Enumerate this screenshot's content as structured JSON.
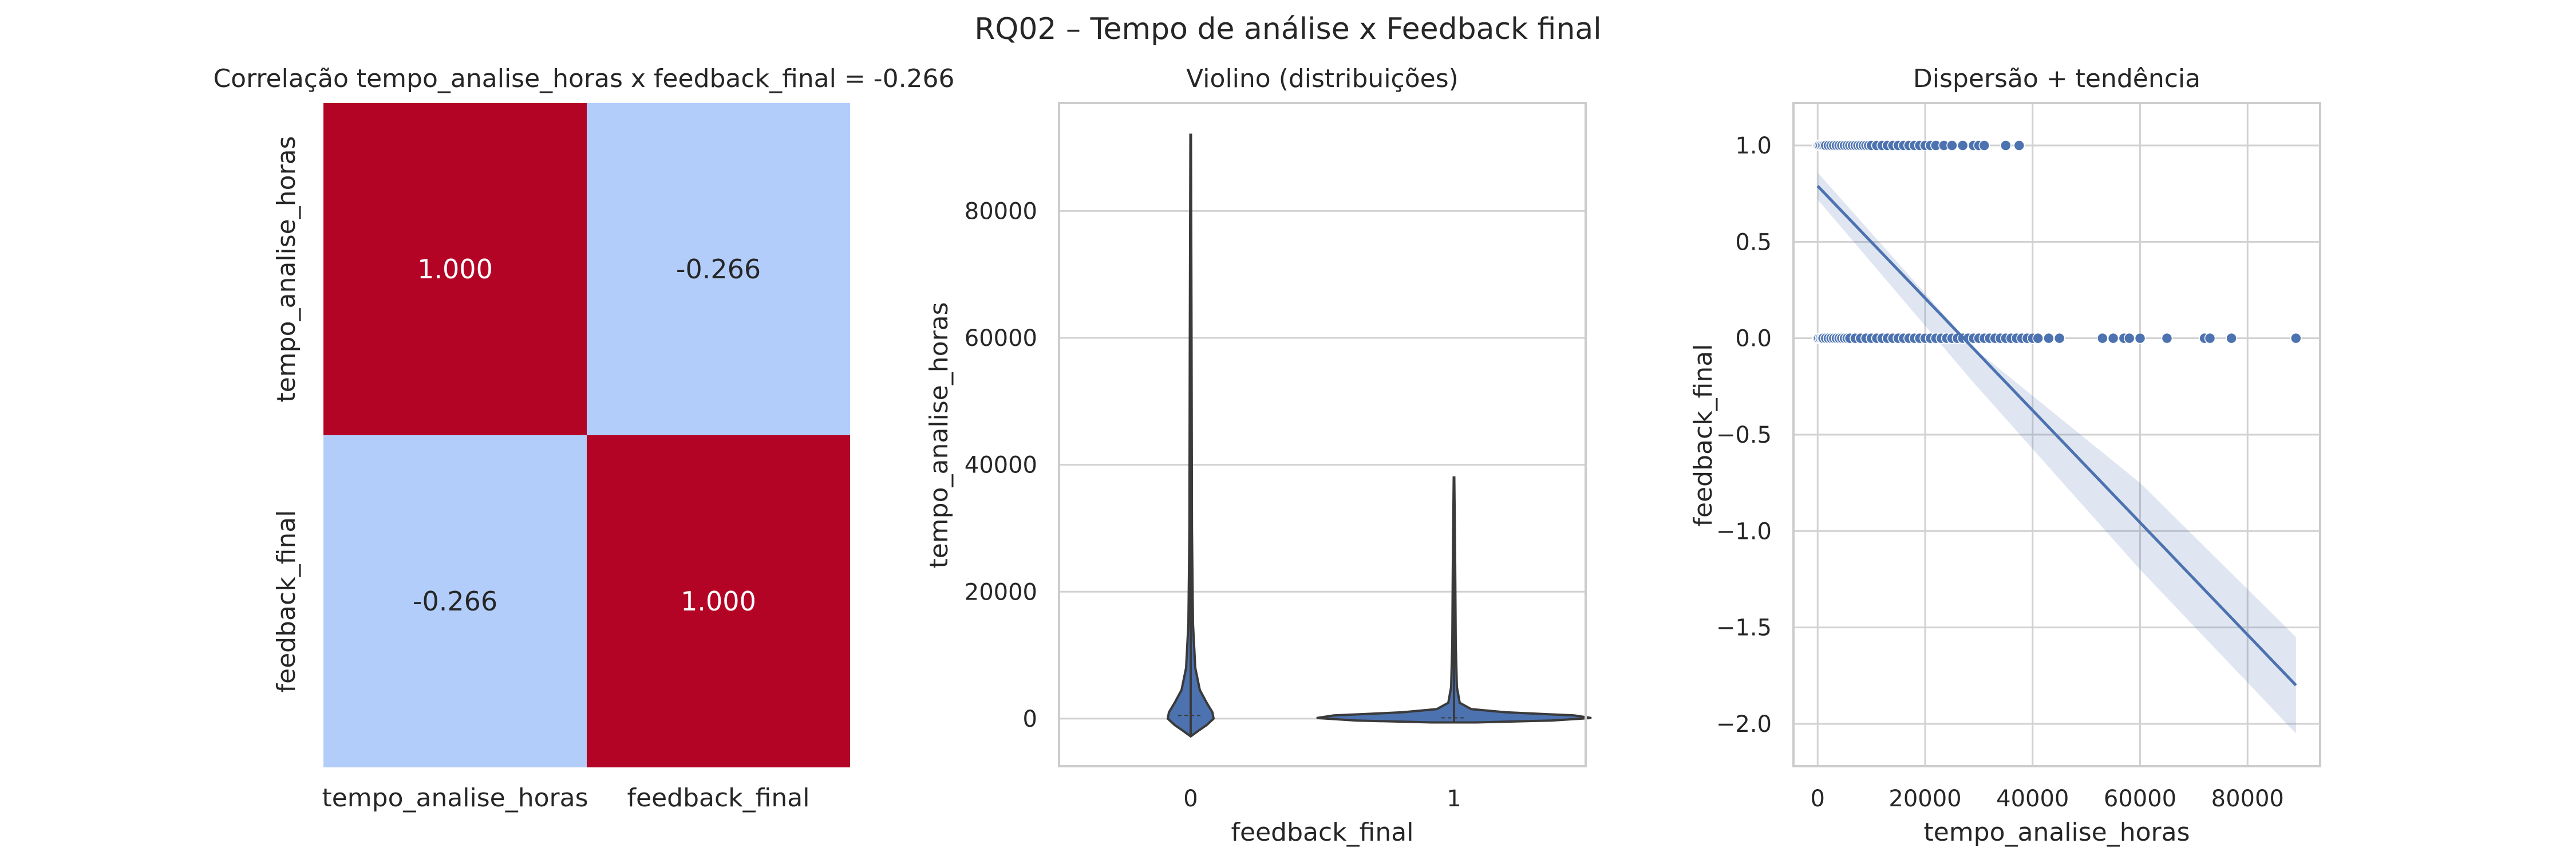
{
  "figure_title": "RQ02 – Tempo de análise x Feedback final",
  "chart_data": [
    {
      "type": "heatmap",
      "title": "Correlação tempo_analise_horas x feedback_final = -0.266",
      "row_labels": [
        "tempo_analise_horas",
        "feedback_final"
      ],
      "col_labels": [
        "tempo_analise_horas",
        "feedback_final"
      ],
      "matrix": [
        [
          1.0,
          -0.266
        ],
        [
          -0.266,
          1.0
        ]
      ],
      "cell_labels": [
        [
          "1.000",
          "-0.266"
        ],
        [
          "-0.266",
          "1.000"
        ]
      ],
      "colors": {
        "high": "#b40426",
        "low": "#b3cdfa",
        "text_on_high": "#ffffff",
        "text_on_low": "#262626"
      }
    },
    {
      "type": "violin",
      "title": "Violino (distribuições)",
      "xlabel": "feedback_final",
      "ylabel": "tempo_analise_horas",
      "categories": [
        "0",
        "1"
      ],
      "ylim": [
        -7500,
        97000
      ],
      "yticks": [
        0,
        20000,
        40000,
        60000,
        80000
      ],
      "ytick_labels": [
        "0",
        "20000",
        "40000",
        "60000",
        "80000"
      ],
      "violins": [
        {
          "category": "0",
          "min": -2800,
          "max": 92000,
          "median": 500,
          "q1": -300,
          "q3": 2500
        },
        {
          "category": "1",
          "min": -600,
          "max": 38000,
          "median": 120,
          "q1": -100,
          "q3": 600
        }
      ],
      "color": "#4c72b0"
    },
    {
      "type": "scatter",
      "title": "Dispersão + tendência",
      "xlabel": "tempo_analise_horas",
      "ylabel": "feedback_final",
      "xlim": [
        -4500,
        93500
      ],
      "ylim": [
        -2.22,
        1.22
      ],
      "xticks": [
        0,
        20000,
        40000,
        60000,
        80000
      ],
      "xtick_labels": [
        "0",
        "20000",
        "40000",
        "60000",
        "80000"
      ],
      "yticks": [
        1.0,
        0.5,
        0.0,
        -0.5,
        -1.0,
        -1.5,
        -2.0
      ],
      "ytick_labels": [
        "1.0",
        "0.5",
        "0.0",
        "−0.5",
        "−1.0",
        "−1.5",
        "−2.0"
      ],
      "points_y1": [
        0,
        100,
        300,
        600,
        900,
        1200,
        1500,
        2000,
        2500,
        3000,
        3500,
        4000,
        4500,
        5000,
        5500,
        6000,
        6500,
        7000,
        7500,
        8000,
        8500,
        9000,
        9500,
        10000,
        11000,
        12000,
        13000,
        14000,
        15000,
        16000,
        17000,
        18000,
        19000,
        20000,
        21000,
        22000,
        23500,
        25000,
        27000,
        29000,
        30000,
        31000,
        35000,
        37500
      ],
      "points_y0": [
        0,
        200,
        500,
        800,
        1000,
        1500,
        2000,
        2500,
        3000,
        3500,
        4000,
        4500,
        5000,
        5500,
        6000,
        7000,
        8000,
        9000,
        10000,
        11000,
        12000,
        13000,
        14000,
        15000,
        16000,
        17000,
        18000,
        19000,
        20000,
        21000,
        22000,
        23000,
        24000,
        25000,
        26000,
        27000,
        28000,
        29000,
        30000,
        31000,
        32000,
        33000,
        34000,
        35000,
        36000,
        37000,
        38000,
        39000,
        40000,
        41000,
        43000,
        45000,
        53000,
        55000,
        57000,
        58000,
        60000,
        65000,
        72000,
        73000,
        77000,
        89000
      ],
      "trend": {
        "x0": 0,
        "y0": 0.79,
        "x1": 89000,
        "y1": -1.8
      },
      "ci": [
        [
          0,
          0.86,
          0.72
        ],
        [
          29000,
          -0.05,
          -0.23
        ],
        [
          60000,
          -0.75,
          -1.2
        ],
        [
          89000,
          -1.55,
          -2.05
        ]
      ],
      "color": "#4c72b0"
    }
  ]
}
